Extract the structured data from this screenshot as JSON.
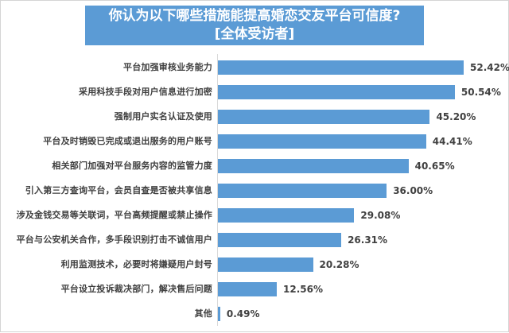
{
  "chart_data": {
    "type": "bar",
    "orientation": "horizontal",
    "title": "你认为以下哪些措施能提高婚恋交友平台可信度?",
    "subtitle": "[全体受访者]",
    "categories": [
      "平台加强审核业务能力",
      "采用科技手段对用户信息进行加密",
      "强制用户实名认证及使用",
      "平台及时销毁已完成或退出服务的用户账号",
      "相关部门加强对平台服务内容的监管力度",
      "引入第三方查询平台，会员自查是否被共享信息",
      "涉及金钱交易等关联词，平台高频提醒或禁止操作",
      "平台与公安机关合作，多手段识别打击不诚信用户",
      "利用监测技术，必要时将嫌疑用户封号",
      "平台设立投诉裁决部门，解决售后问题",
      "其他"
    ],
    "values": [
      52.42,
      50.54,
      45.2,
      44.41,
      40.65,
      36.0,
      29.08,
      26.31,
      20.28,
      12.56,
      0.49
    ],
    "value_labels": [
      "52.42%",
      "50.54%",
      "45.20%",
      "44.41%",
      "40.65%",
      "36.00%",
      "29.08%",
      "26.31%",
      "20.28%",
      "12.56%",
      "0.49%"
    ],
    "xlabel": "",
    "ylabel": "",
    "unit": "%",
    "grid": false,
    "legend": "none",
    "bar_color": "#5b9bd5"
  },
  "header": {
    "title_line1": "你认为以下哪些措施能提高婚恋交友平台可信度?",
    "title_line2": "[全体受访者]",
    "title_bg": "#5b9bd5"
  }
}
